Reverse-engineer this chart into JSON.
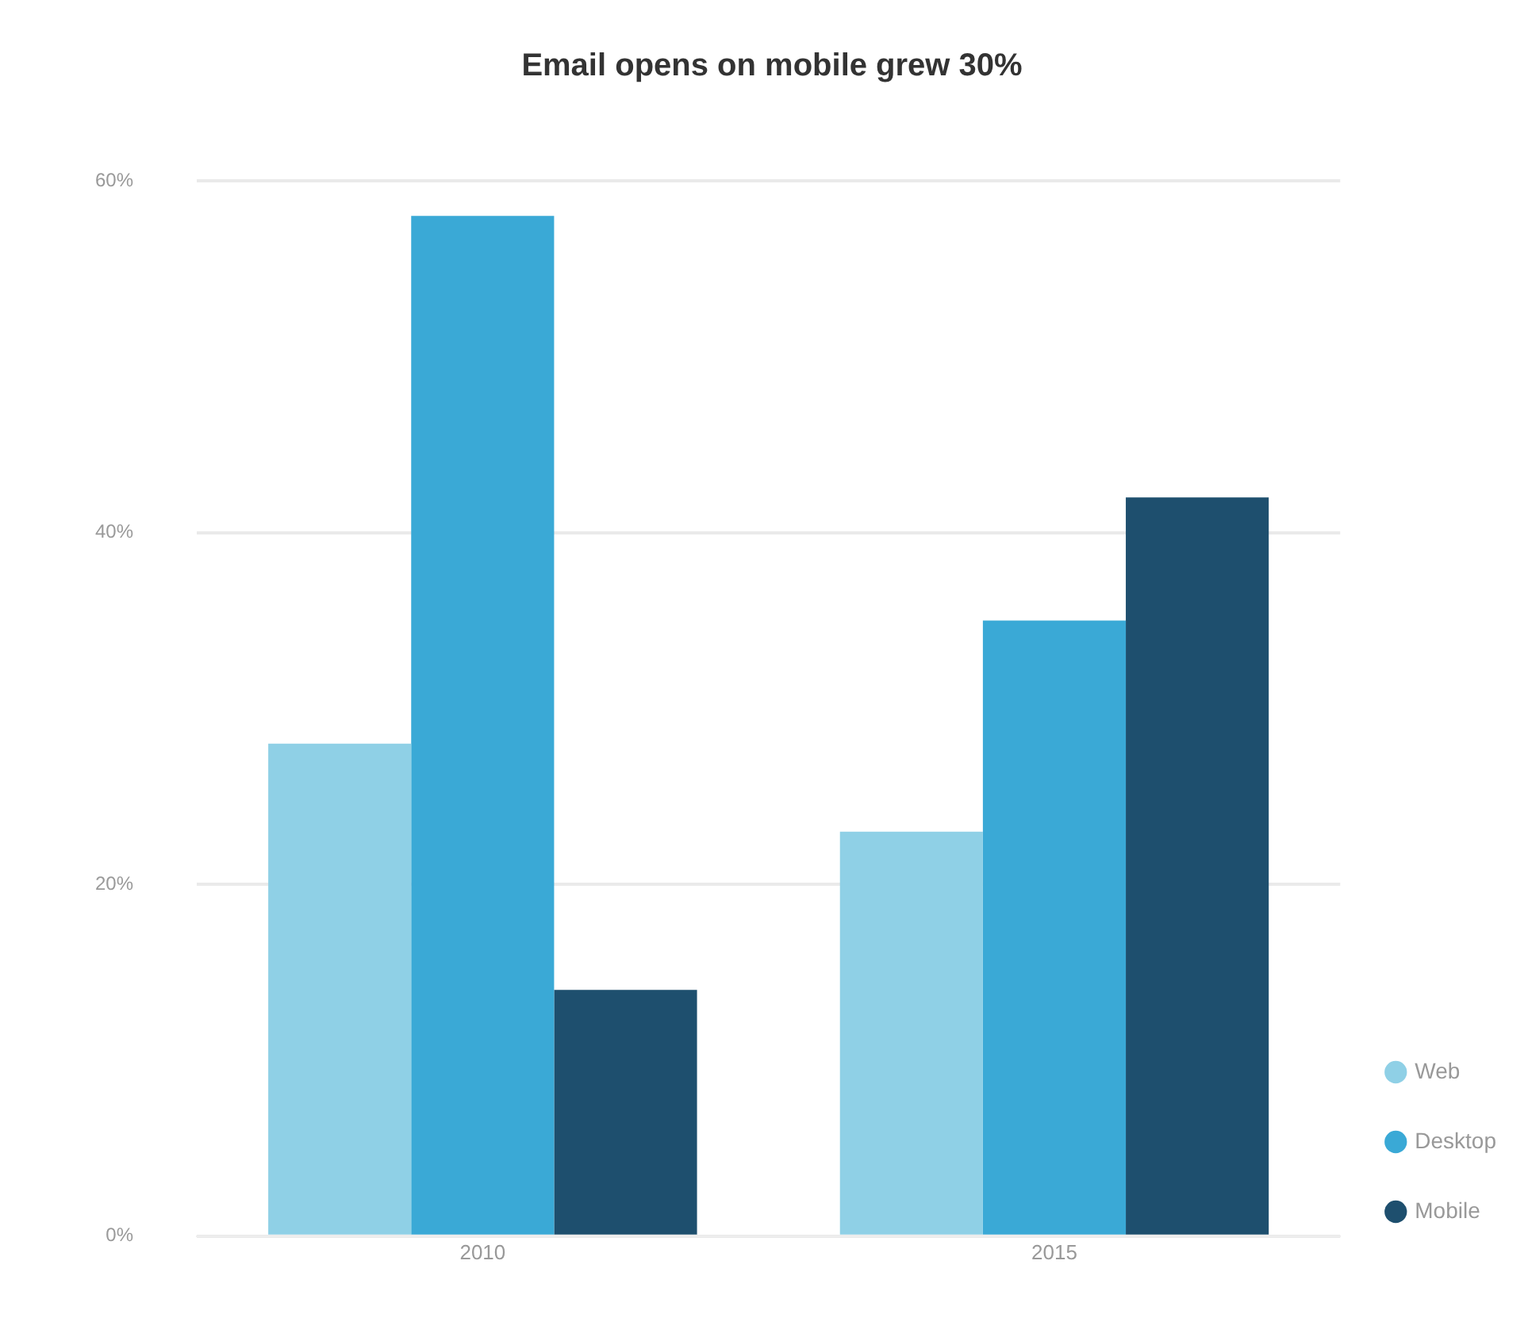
{
  "chart_data": {
    "type": "bar",
    "title": "Email opens on mobile grew 30%",
    "categories": [
      "2010",
      "2015"
    ],
    "series": [
      {
        "name": "Web",
        "color": "#8fd0e6",
        "values": [
          28,
          23
        ]
      },
      {
        "name": "Desktop",
        "color": "#3aa9d6",
        "values": [
          58,
          35
        ]
      },
      {
        "name": "Mobile",
        "color": "#1e4f6e",
        "values": [
          14,
          42
        ]
      }
    ],
    "ylim": [
      0,
      60
    ],
    "yticks": [
      {
        "value": 0,
        "label": "0%"
      },
      {
        "value": 20,
        "label": "20%"
      },
      {
        "value": 40,
        "label": "40%"
      },
      {
        "value": 60,
        "label": "60%"
      }
    ],
    "grid": "y",
    "legend": "bottom right"
  }
}
